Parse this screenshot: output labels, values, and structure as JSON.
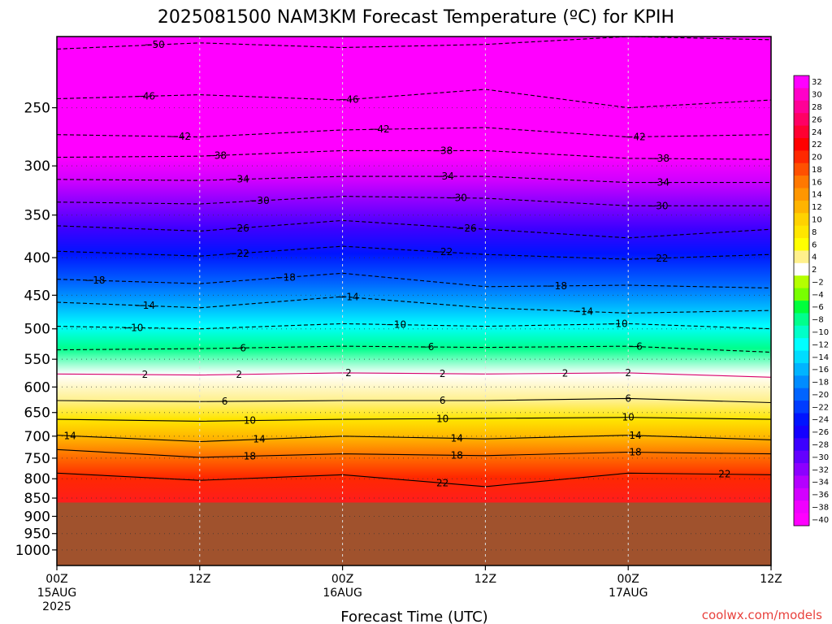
{
  "chart_data": {
    "type": "heatmap",
    "title": "2025081500 NAM3KM Forecast Temperature (ºC) for KPIH",
    "xlabel": "Forecast Time (UTC)",
    "ylabel": "",
    "credit": "coolwx.com/models",
    "y_scale": "log-pressure",
    "ylim_hPa": [
      1050,
      200
    ],
    "y_ticks": [
      "250",
      "300",
      "350",
      "400",
      "450",
      "500",
      "550",
      "600",
      "650",
      "700",
      "750",
      "800",
      "850",
      "900",
      "950",
      "1000"
    ],
    "x_ticks": [
      {
        "label": "00Z",
        "sub1": "15AUG",
        "sub2": "2025"
      },
      {
        "label": "12Z",
        "sub1": "",
        "sub2": ""
      },
      {
        "label": "00Z",
        "sub1": "16AUG",
        "sub2": ""
      },
      {
        "label": "12Z",
        "sub1": "",
        "sub2": ""
      },
      {
        "label": "00Z",
        "sub1": "17AUG",
        "sub2": ""
      },
      {
        "label": "12Z",
        "sub1": "",
        "sub2": ""
      }
    ],
    "x_hours": [
      0,
      12,
      24,
      36,
      48,
      60
    ],
    "surface_pressure_hPa": 862,
    "surface_color": "#a0522d",
    "grid": "dotted",
    "legend_placement": "right",
    "colorbar_labels": [
      "32",
      "30",
      "28",
      "26",
      "24",
      "22",
      "20",
      "18",
      "16",
      "14",
      "12",
      "10",
      "8",
      "6",
      "4",
      "2",
      "-2",
      "-4",
      "-6",
      "-8",
      "-10",
      "-12",
      "-14",
      "-16",
      "-18",
      "-20",
      "-22",
      "-24",
      "-26",
      "-28",
      "-30",
      "-32",
      "-34",
      "-36",
      "-38",
      "-40"
    ],
    "colorbar_colors": [
      "#ff00ff",
      "#ff00c8",
      "#ff0096",
      "#ff0064",
      "#ff0032",
      "#ff0000",
      "#ff2800",
      "#ff5000",
      "#ff7800",
      "#ff9600",
      "#ffb400",
      "#ffd200",
      "#ffe600",
      "#ffff00",
      "#fff08c",
      "#ffffff",
      "#b4ff00",
      "#78ff00",
      "#00ff3c",
      "#00ff8c",
      "#00ffc8",
      "#00ffff",
      "#00dcff",
      "#00b4ff",
      "#008cff",
      "#0064ff",
      "#003cff",
      "#0014ff",
      "#1400ff",
      "#3c00ff",
      "#6400ff",
      "#8c00ff",
      "#b400ff",
      "#d200ff",
      "#f000ff",
      "#ff00ff"
    ],
    "series": [
      {
        "level": -50,
        "p": [
          208,
          204,
          207,
          205,
          200,
          202
        ]
      },
      {
        "level": -46,
        "p": [
          243,
          240,
          244,
          236,
          250,
          244
        ]
      },
      {
        "level": -42,
        "p": [
          272,
          274,
          268,
          266,
          274,
          272
        ]
      },
      {
        "level": -38,
        "p": [
          292,
          291,
          286,
          286,
          293,
          294
        ]
      },
      {
        "level": -34,
        "p": [
          313,
          314,
          310,
          310,
          316,
          316
        ]
      },
      {
        "level": -30,
        "p": [
          336,
          338,
          330,
          332,
          340,
          340
        ]
      },
      {
        "level": -26,
        "p": [
          362,
          368,
          356,
          366,
          376,
          366
        ]
      },
      {
        "level": -22,
        "p": [
          392,
          398,
          386,
          396,
          402,
          396
        ]
      },
      {
        "level": -18,
        "p": [
          428,
          434,
          420,
          438,
          436,
          440
        ]
      },
      {
        "level": -14,
        "p": [
          460,
          468,
          452,
          468,
          476,
          472
        ]
      },
      {
        "level": -10,
        "p": [
          496,
          500,
          492,
          496,
          492,
          500
        ]
      },
      {
        "level": -6,
        "p": [
          534,
          532,
          528,
          530,
          528,
          538
        ]
      },
      {
        "level": 2,
        "p": [
          576,
          578,
          574,
          576,
          574,
          582
        ]
      },
      {
        "level": 6,
        "p": [
          626,
          628,
          626,
          626,
          622,
          630
        ]
      },
      {
        "level": 10,
        "p": [
          664,
          668,
          664,
          662,
          660,
          664
        ]
      },
      {
        "level": 14,
        "p": [
          698,
          712,
          700,
          706,
          698,
          708
        ]
      },
      {
        "level": 18,
        "p": [
          730,
          748,
          740,
          744,
          736,
          740
        ]
      },
      {
        "level": 22,
        "p": [
          786,
          804,
          790,
          820,
          786,
          790
        ]
      }
    ],
    "contour_labels": [
      {
        "level": -50,
        "hour": 8.2
      },
      {
        "level": -46,
        "hour": 7.4
      },
      {
        "level": -46,
        "hour": 24.5
      },
      {
        "level": -42,
        "hour": 10.4
      },
      {
        "level": -42,
        "hour": 27.1
      },
      {
        "level": -42,
        "hour": 48.6
      },
      {
        "level": -38,
        "hour": 13.4
      },
      {
        "level": -38,
        "hour": 32.4
      },
      {
        "level": -38,
        "hour": 50.6
      },
      {
        "level": -34,
        "hour": 15.3
      },
      {
        "level": -34,
        "hour": 32.5
      },
      {
        "level": -34,
        "hour": 50.6
      },
      {
        "level": -30,
        "hour": 17.0
      },
      {
        "level": -30,
        "hour": 33.6
      },
      {
        "level": -30,
        "hour": 50.5
      },
      {
        "level": -26,
        "hour": 15.3
      },
      {
        "level": -26,
        "hour": 34.4
      },
      {
        "level": -22,
        "hour": 15.3
      },
      {
        "level": -22,
        "hour": 32.4
      },
      {
        "level": -22,
        "hour": 50.5
      },
      {
        "level": -18,
        "hour": 3.2
      },
      {
        "level": -18,
        "hour": 19.2
      },
      {
        "level": -18,
        "hour": 42.0
      },
      {
        "level": -14,
        "hour": 7.4
      },
      {
        "level": -14,
        "hour": 24.5
      },
      {
        "level": -14,
        "hour": 44.2
      },
      {
        "level": -10,
        "hour": 6.4
      },
      {
        "level": -10,
        "hour": 28.5
      },
      {
        "level": -10,
        "hour": 47.1
      },
      {
        "level": -6,
        "hour": 15.3
      },
      {
        "level": -6,
        "hour": 31.1
      },
      {
        "level": -6,
        "hour": 48.6
      },
      {
        "level": 2,
        "hour": 7.4
      },
      {
        "level": 2,
        "hour": 24.5
      },
      {
        "level": 2,
        "hour": 42.7
      },
      {
        "level": 2,
        "hour": 15.3
      },
      {
        "level": 2,
        "hour": 32.4
      },
      {
        "level": 2,
        "hour": 48.0
      },
      {
        "level": 6,
        "hour": 14.1
      },
      {
        "level": 6,
        "hour": 32.4
      },
      {
        "level": 6,
        "hour": 48.0
      },
      {
        "level": 10,
        "hour": 16.2
      },
      {
        "level": 10,
        "hour": 32.4
      },
      {
        "level": 10,
        "hour": 48.0
      },
      {
        "level": 14,
        "hour": 1.1
      },
      {
        "level": 14,
        "hour": 17.0
      },
      {
        "level": 14,
        "hour": 33.6
      },
      {
        "level": 14,
        "hour": 48.6
      },
      {
        "level": 18,
        "hour": 16.2
      },
      {
        "level": 18,
        "hour": 33.6
      },
      {
        "level": 18,
        "hour": 48.6
      },
      {
        "level": 22,
        "hour": 32.4
      },
      {
        "level": 22,
        "hour": 56.1
      }
    ]
  }
}
